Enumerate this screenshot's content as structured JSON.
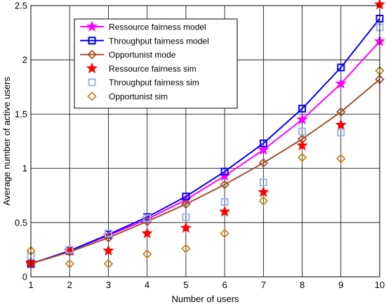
{
  "chart_data": {
    "type": "line",
    "title": "",
    "xlabel": "Number of  users",
    "ylabel": "Average number of active users",
    "xlim": [
      1,
      10
    ],
    "ylim": [
      0,
      2.5
    ],
    "xticks": [
      "1",
      "2",
      "3",
      "4",
      "5",
      "6",
      "7",
      "8",
      "9",
      "10"
    ],
    "yticks": [
      "0",
      "0.5",
      "1",
      "1.5",
      "2",
      "2.5"
    ],
    "grid": true,
    "legend_position": "top-left",
    "x": [
      1,
      2,
      3,
      4,
      5,
      6,
      7,
      8,
      9,
      10
    ],
    "series": [
      {
        "name": "Ressource fairness model",
        "values": [
          0.12,
          0.24,
          0.38,
          0.53,
          0.71,
          0.93,
          1.17,
          1.45,
          1.78,
          2.17
        ],
        "color": "#ff00ff",
        "marker": "star",
        "line": true
      },
      {
        "name": "Throughput  fairness model",
        "values": [
          0.12,
          0.24,
          0.39,
          0.55,
          0.74,
          0.97,
          1.23,
          1.55,
          1.93,
          2.38
        ],
        "color": "#0000ff",
        "marker": "square",
        "line": true
      },
      {
        "name": "Opportunist mode",
        "values": [
          0.12,
          0.23,
          0.36,
          0.51,
          0.67,
          0.85,
          1.05,
          1.27,
          1.52,
          1.82
        ],
        "color": "#a0522d",
        "marker": "diamond",
        "line": true
      },
      {
        "name": "Ressource fairness sim",
        "values": [
          0.13,
          0.24,
          0.24,
          0.4,
          0.45,
          0.6,
          0.78,
          1.21,
          1.4,
          2.51
        ],
        "color": "#ff0000",
        "marker": "star",
        "line": false
      },
      {
        "name": "Throughput  fairness sim",
        "values": [
          0.19,
          0.25,
          0.4,
          0.54,
          0.55,
          0.69,
          0.87,
          1.34,
          1.33,
          2.3
        ],
        "color": "#9eb6e8",
        "marker": "square",
        "line": false
      },
      {
        "name": "Opportunist sim",
        "values": [
          0.24,
          0.12,
          0.12,
          0.21,
          0.26,
          0.4,
          0.7,
          1.1,
          1.09,
          1.9
        ],
        "color": "#c8861a",
        "marker": "diamond",
        "line": false
      }
    ]
  }
}
